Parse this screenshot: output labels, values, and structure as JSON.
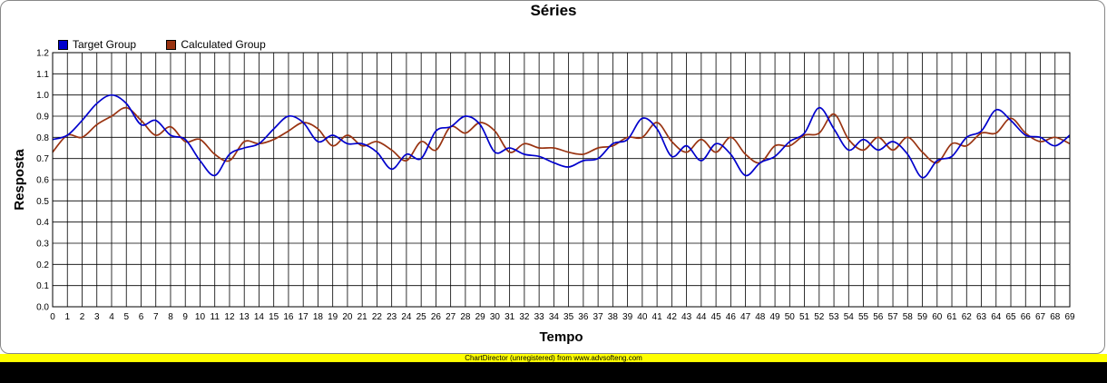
{
  "chart_data": {
    "type": "line",
    "title": "Séries",
    "xlabel": "Tempo",
    "ylabel": "Resposta",
    "xlim": [
      0,
      69
    ],
    "ylim": [
      0,
      1.2
    ],
    "ytick_step": 0.1,
    "grid": true,
    "legend_position": "top-left",
    "x": [
      0,
      1,
      2,
      3,
      4,
      5,
      6,
      7,
      8,
      9,
      10,
      11,
      12,
      13,
      14,
      15,
      16,
      17,
      18,
      19,
      20,
      21,
      22,
      23,
      24,
      25,
      26,
      27,
      28,
      29,
      30,
      31,
      32,
      33,
      34,
      35,
      36,
      37,
      38,
      39,
      40,
      41,
      42,
      43,
      44,
      45,
      46,
      47,
      48,
      49,
      50,
      51,
      52,
      53,
      54,
      55,
      56,
      57,
      58,
      59,
      60,
      61,
      62,
      63,
      64,
      65,
      66,
      67,
      68,
      69
    ],
    "series": [
      {
        "name": "Target Group",
        "color": "#0000cc",
        "values": [
          0.79,
          0.81,
          0.88,
          0.96,
          1.0,
          0.96,
          0.86,
          0.88,
          0.81,
          0.79,
          0.69,
          0.62,
          0.72,
          0.75,
          0.77,
          0.84,
          0.9,
          0.87,
          0.78,
          0.81,
          0.77,
          0.77,
          0.73,
          0.65,
          0.72,
          0.7,
          0.83,
          0.85,
          0.9,
          0.86,
          0.73,
          0.75,
          0.72,
          0.71,
          0.68,
          0.66,
          0.69,
          0.7,
          0.77,
          0.79,
          0.89,
          0.84,
          0.71,
          0.76,
          0.69,
          0.77,
          0.72,
          0.62,
          0.68,
          0.71,
          0.78,
          0.82,
          0.94,
          0.84,
          0.74,
          0.79,
          0.74,
          0.78,
          0.72,
          0.61,
          0.69,
          0.71,
          0.8,
          0.83,
          0.93,
          0.88,
          0.81,
          0.8,
          0.76,
          0.81
        ]
      },
      {
        "name": "Calculated Group",
        "color": "#993311",
        "values": [
          0.73,
          0.81,
          0.8,
          0.86,
          0.9,
          0.94,
          0.88,
          0.81,
          0.85,
          0.78,
          0.79,
          0.72,
          0.69,
          0.78,
          0.77,
          0.79,
          0.83,
          0.87,
          0.84,
          0.76,
          0.81,
          0.76,
          0.78,
          0.74,
          0.69,
          0.78,
          0.74,
          0.85,
          0.82,
          0.87,
          0.83,
          0.73,
          0.77,
          0.75,
          0.75,
          0.73,
          0.72,
          0.75,
          0.76,
          0.8,
          0.8,
          0.87,
          0.78,
          0.73,
          0.79,
          0.73,
          0.8,
          0.72,
          0.68,
          0.76,
          0.76,
          0.81,
          0.82,
          0.91,
          0.79,
          0.74,
          0.8,
          0.74,
          0.8,
          0.73,
          0.68,
          0.77,
          0.76,
          0.82,
          0.82,
          0.89,
          0.82,
          0.78,
          0.8,
          0.77
        ]
      }
    ]
  },
  "banner_text": "ChartDirector (unregistered) from www.advsofteng.com"
}
